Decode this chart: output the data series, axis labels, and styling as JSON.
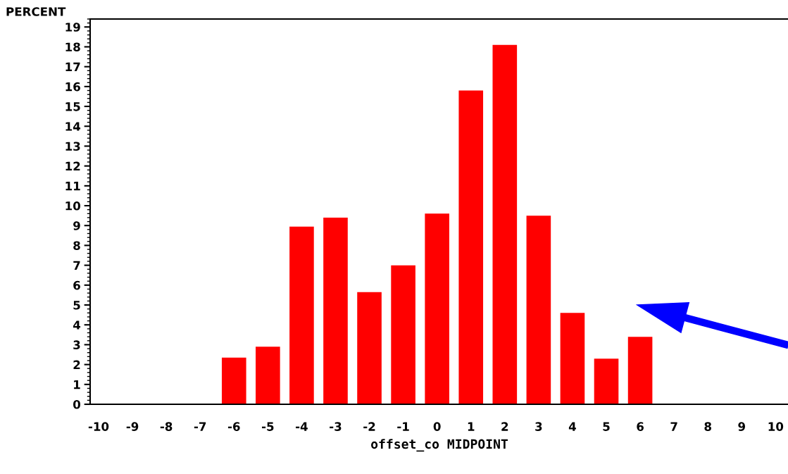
{
  "chart_data": {
    "type": "bar",
    "ylabel": "PERCENT",
    "xlabel": "offset_co MIDPOINT",
    "categories": [
      "-10",
      "-9",
      "-8",
      "-7",
      "-6",
      "-5",
      "-4",
      "-3",
      "-2",
      "-1",
      "0",
      "1",
      "2",
      "3",
      "4",
      "5",
      "6",
      "7",
      "8",
      "9",
      "10"
    ],
    "values": [
      0,
      0,
      0,
      0,
      2.35,
      2.9,
      8.95,
      9.4,
      5.65,
      7.0,
      9.6,
      15.8,
      18.1,
      9.5,
      4.6,
      2.3,
      3.4,
      0,
      0,
      0,
      0
    ],
    "color": "#ff0000",
    "ylim": [
      0,
      19.4
    ],
    "yticks": [
      0,
      1,
      2,
      3,
      4,
      5,
      6,
      7,
      8,
      9,
      10,
      11,
      12,
      13,
      14,
      15,
      16,
      17,
      18,
      19
    ],
    "grid": false
  }
}
